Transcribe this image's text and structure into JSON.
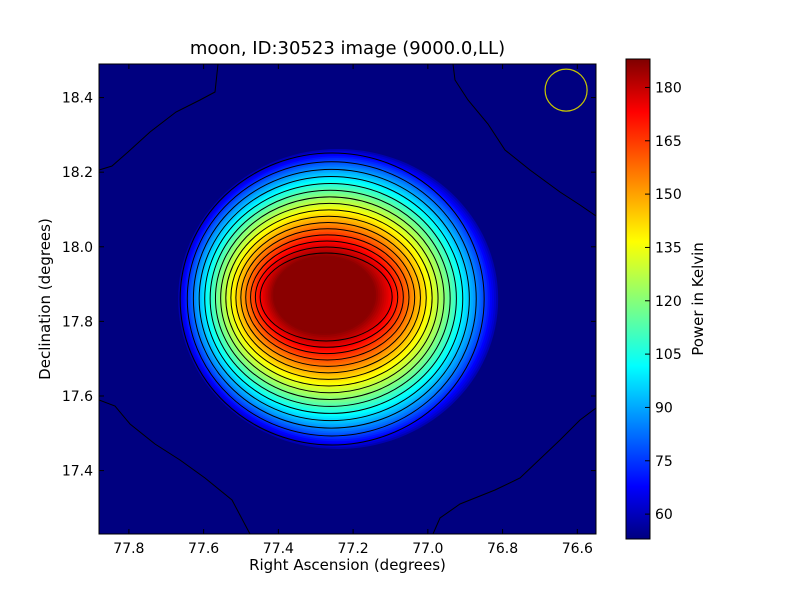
{
  "chart_data": {
    "type": "heatmap",
    "title": "moon, ID:30523 image (9000.0,LL)",
    "xlabel": "Right Ascension (degrees)",
    "ylabel": "Declination (degrees)",
    "xlim": [
      77.88,
      76.55
    ],
    "ylim": [
      17.23,
      18.49
    ],
    "x_ticks": [
      "77.8",
      "77.6",
      "77.4",
      "77.2",
      "77.0",
      "76.8",
      "76.6"
    ],
    "x_tick_values": [
      77.8,
      77.6,
      77.4,
      77.2,
      77.0,
      76.8,
      76.6
    ],
    "y_ticks": [
      "17.4",
      "17.6",
      "17.8",
      "18.0",
      "18.2",
      "18.4"
    ],
    "y_tick_values": [
      17.4,
      17.6,
      17.8,
      18.0,
      18.2,
      18.4
    ],
    "colormap": "jet",
    "colorbar": {
      "label": "Power in Kelvin",
      "range": [
        53,
        188
      ],
      "ticks": [
        "60",
        "75",
        "90",
        "105",
        "120",
        "135",
        "150",
        "165",
        "180"
      ],
      "tick_values": [
        60,
        75,
        90,
        105,
        120,
        135,
        150,
        165,
        180
      ]
    },
    "source": {
      "center_ra": 77.24,
      "center_dec": 17.86,
      "peak_kelvin": 188,
      "background_kelvin": 53
    },
    "contour_count": 16,
    "beam_marker": {
      "ra": 76.63,
      "dec": 18.42,
      "color": "#c8c800"
    }
  }
}
